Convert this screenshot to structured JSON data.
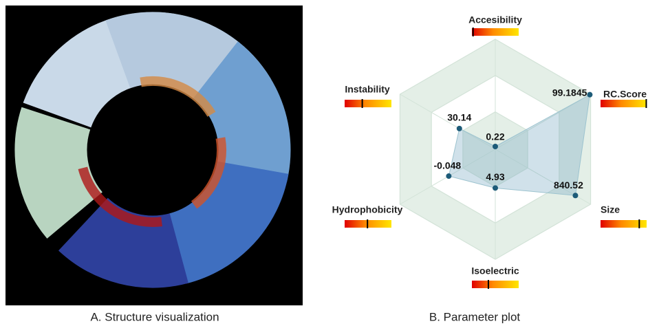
{
  "structure": {
    "caption": "A. Structure visualization"
  },
  "chart_data": {
    "type": "radar",
    "caption": "B. Parameter plot",
    "categories": [
      "Accesibility",
      "RC.Score",
      "Size",
      "Isoelectric",
      "Hydrophobicity",
      "Instability"
    ],
    "values": [
      0.22,
      99.1845,
      840.52,
      4.93,
      -0.048,
      30.14
    ],
    "ranges": [
      [
        0.2,
        1
      ],
      [
        0,
        100
      ],
      [
        0,
        1000
      ],
      [
        0,
        14
      ],
      [
        -2,
        2
      ],
      [
        0,
        80
      ]
    ],
    "color": "#1d5b78"
  }
}
